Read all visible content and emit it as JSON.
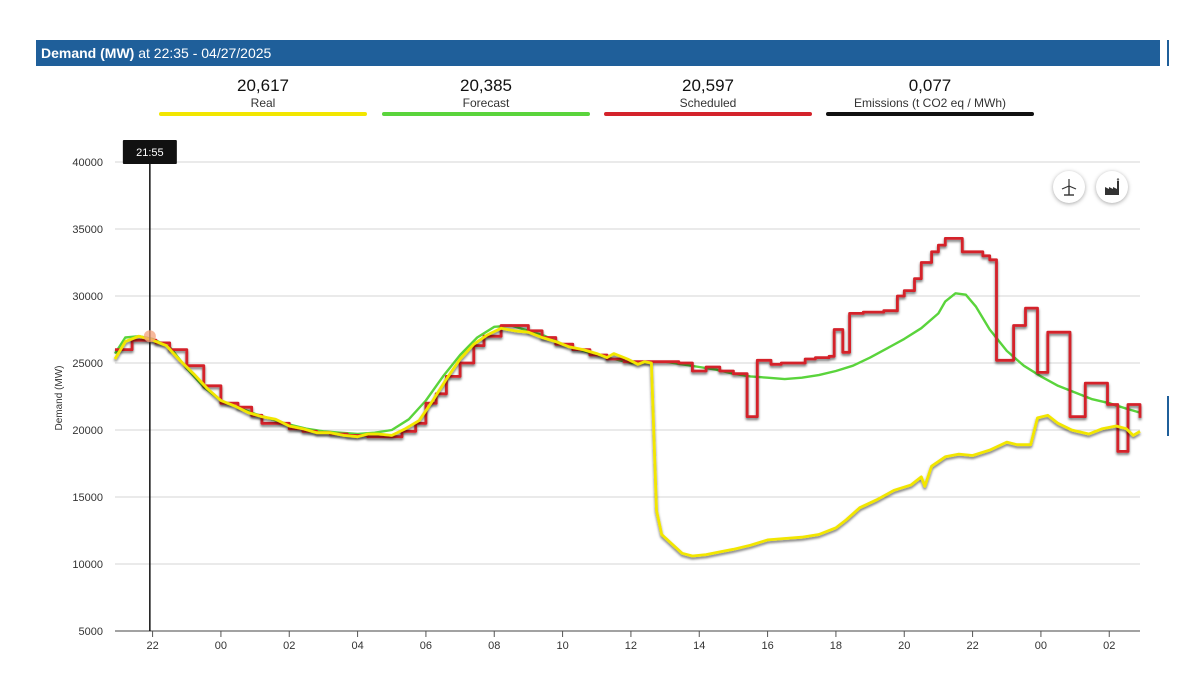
{
  "header": {
    "title_bold": "Demand (MW)",
    "title_rest": " at 22:35 - 04/27/2025"
  },
  "kpis": [
    {
      "value": "20,617",
      "label": "Real",
      "color": "#f2e600"
    },
    {
      "value": "20,385",
      "label": "Forecast",
      "color": "#5ad43c"
    },
    {
      "value": "20,597",
      "label": "Scheduled",
      "color": "#d4232b"
    },
    {
      "value": "0,077",
      "label": "Emissions (t CO2 eq / MWh)",
      "color": "#111111"
    }
  ],
  "buttons": {
    "left_icon": "wind-turbine-icon",
    "right_icon": "factory-icon"
  },
  "chart_data": {
    "type": "line",
    "title": "Demand (MW)",
    "ylabel": "Demand (MW)",
    "xlabel": "",
    "ylim": [
      5000,
      40000
    ],
    "yticks": [
      5000,
      10000,
      15000,
      20000,
      25000,
      30000,
      35000,
      40000
    ],
    "xlim": [
      20.9,
      50.9
    ],
    "xticks": [
      {
        "x": 22,
        "label": "22"
      },
      {
        "x": 24,
        "label": "00"
      },
      {
        "x": 26,
        "label": "02"
      },
      {
        "x": 28,
        "label": "04"
      },
      {
        "x": 30,
        "label": "06"
      },
      {
        "x": 32,
        "label": "08"
      },
      {
        "x": 34,
        "label": "10"
      },
      {
        "x": 36,
        "label": "12"
      },
      {
        "x": 38,
        "label": "14"
      },
      {
        "x": 40,
        "label": "16"
      },
      {
        "x": 42,
        "label": "18"
      },
      {
        "x": 44,
        "label": "20"
      },
      {
        "x": 46,
        "label": "22"
      },
      {
        "x": 48,
        "label": "00"
      },
      {
        "x": 50,
        "label": "02"
      }
    ],
    "cursor": {
      "x": 21.92,
      "label": "21:55"
    },
    "series": [
      {
        "name": "Forecast",
        "color": "#5ad43c",
        "step": false,
        "points": [
          [
            20.9,
            25700
          ],
          [
            21.2,
            26900
          ],
          [
            21.6,
            27000
          ],
          [
            22,
            26800
          ],
          [
            22.5,
            26200
          ],
          [
            23,
            24600
          ],
          [
            23.5,
            23200
          ],
          [
            24,
            22200
          ],
          [
            24.5,
            21700
          ],
          [
            25,
            21200
          ],
          [
            25.5,
            20800
          ],
          [
            26,
            20400
          ],
          [
            26.5,
            20100
          ],
          [
            27,
            19900
          ],
          [
            27.5,
            19800
          ],
          [
            28,
            19700
          ],
          [
            28.5,
            19800
          ],
          [
            29,
            20000
          ],
          [
            29.5,
            20800
          ],
          [
            30,
            22200
          ],
          [
            30.5,
            24000
          ],
          [
            31,
            25600
          ],
          [
            31.5,
            26900
          ],
          [
            32,
            27700
          ],
          [
            32.5,
            27800
          ],
          [
            33,
            27400
          ],
          [
            33.5,
            27000
          ],
          [
            34,
            26400
          ],
          [
            34.5,
            26000
          ],
          [
            35,
            25600
          ],
          [
            35.5,
            25300
          ],
          [
            36,
            25000
          ],
          [
            36.5,
            25100
          ],
          [
            37,
            25100
          ],
          [
            37.5,
            24900
          ],
          [
            38,
            24700
          ],
          [
            38.5,
            24500
          ],
          [
            39,
            24200
          ],
          [
            39.5,
            24000
          ],
          [
            40,
            23900
          ],
          [
            40.5,
            23800
          ],
          [
            41,
            23900
          ],
          [
            41.5,
            24100
          ],
          [
            42,
            24400
          ],
          [
            42.5,
            24800
          ],
          [
            43,
            25400
          ],
          [
            43.5,
            26100
          ],
          [
            44,
            26800
          ],
          [
            44.5,
            27600
          ],
          [
            45,
            28700
          ],
          [
            45.2,
            29600
          ],
          [
            45.5,
            30200
          ],
          [
            45.8,
            30100
          ],
          [
            46.1,
            29200
          ],
          [
            46.5,
            27500
          ],
          [
            47,
            25900
          ],
          [
            47.5,
            24800
          ],
          [
            48,
            24000
          ],
          [
            48.5,
            23300
          ],
          [
            49,
            22800
          ],
          [
            49.5,
            22300
          ],
          [
            50,
            22000
          ],
          [
            50.5,
            21600
          ],
          [
            50.9,
            21300
          ]
        ]
      },
      {
        "name": "Scheduled",
        "color": "#d4232b",
        "step": true,
        "points": [
          [
            20.9,
            26000
          ],
          [
            21.4,
            26700
          ],
          [
            22.1,
            26500
          ],
          [
            22.5,
            26000
          ],
          [
            23,
            24800
          ],
          [
            23.5,
            23300
          ],
          [
            24,
            22000
          ],
          [
            24.5,
            21700
          ],
          [
            24.9,
            21100
          ],
          [
            25.2,
            20500
          ],
          [
            25.6,
            20500
          ],
          [
            26,
            20100
          ],
          [
            26.4,
            19900
          ],
          [
            26.8,
            19800
          ],
          [
            27.2,
            19700
          ],
          [
            27.7,
            19600
          ],
          [
            28.3,
            19500
          ],
          [
            28.9,
            19500
          ],
          [
            29.3,
            19900
          ],
          [
            29.7,
            20500
          ],
          [
            30,
            22000
          ],
          [
            30.3,
            22700
          ],
          [
            30.6,
            24000
          ],
          [
            31,
            25000
          ],
          [
            31.4,
            26300
          ],
          [
            31.7,
            27000
          ],
          [
            32.2,
            27800
          ],
          [
            32.6,
            27800
          ],
          [
            33,
            27400
          ],
          [
            33.4,
            26900
          ],
          [
            33.8,
            26400
          ],
          [
            34.3,
            26000
          ],
          [
            34.8,
            25600
          ],
          [
            35.3,
            25300
          ],
          [
            35.8,
            25100
          ],
          [
            36.2,
            25100
          ],
          [
            36.6,
            25100
          ],
          [
            37.4,
            25000
          ],
          [
            37.8,
            24400
          ],
          [
            38.2,
            24700
          ],
          [
            38.6,
            24400
          ],
          [
            39,
            24200
          ],
          [
            39.4,
            21000
          ],
          [
            39.7,
            25200
          ],
          [
            40.1,
            24900
          ],
          [
            40.4,
            25000
          ],
          [
            40.8,
            25000
          ],
          [
            41.1,
            25300
          ],
          [
            41.4,
            25400
          ],
          [
            41.8,
            25500
          ],
          [
            41.95,
            27500
          ],
          [
            42.2,
            25800
          ],
          [
            42.4,
            28700
          ],
          [
            42.8,
            28800
          ],
          [
            43.4,
            28900
          ],
          [
            43.8,
            30000
          ],
          [
            44,
            30400
          ],
          [
            44.3,
            31300
          ],
          [
            44.5,
            32500
          ],
          [
            44.8,
            33300
          ],
          [
            45,
            33800
          ],
          [
            45.2,
            34300
          ],
          [
            45.7,
            33300
          ],
          [
            46.3,
            33000
          ],
          [
            46.5,
            32700
          ],
          [
            46.7,
            25200
          ],
          [
            47.2,
            27800
          ],
          [
            47.55,
            29100
          ],
          [
            47.9,
            24300
          ],
          [
            48.2,
            27300
          ],
          [
            48.85,
            21000
          ],
          [
            49.3,
            23500
          ],
          [
            49.95,
            21900
          ],
          [
            50.25,
            18400
          ],
          [
            50.55,
            21900
          ],
          [
            50.9,
            20900
          ]
        ]
      },
      {
        "name": "Real",
        "color": "#f2e600",
        "step": false,
        "points": [
          [
            20.9,
            25300
          ],
          [
            21.2,
            26600
          ],
          [
            21.6,
            27000
          ],
          [
            22,
            26700
          ],
          [
            22.4,
            26300
          ],
          [
            22.8,
            25200
          ],
          [
            23.2,
            24200
          ],
          [
            23.6,
            23100
          ],
          [
            24,
            22200
          ],
          [
            24.4,
            21800
          ],
          [
            24.8,
            21300
          ],
          [
            25.2,
            21000
          ],
          [
            25.6,
            20800
          ],
          [
            26,
            20300
          ],
          [
            26.4,
            20100
          ],
          [
            26.8,
            19800
          ],
          [
            27.2,
            19800
          ],
          [
            27.6,
            19600
          ],
          [
            28,
            19500
          ],
          [
            28.3,
            19700
          ],
          [
            28.6,
            19700
          ],
          [
            29,
            19600
          ],
          [
            29.4,
            20100
          ],
          [
            29.8,
            20700
          ],
          [
            30.2,
            22200
          ],
          [
            30.6,
            23800
          ],
          [
            31,
            25300
          ],
          [
            31.4,
            26400
          ],
          [
            31.8,
            27100
          ],
          [
            32.2,
            27600
          ],
          [
            32.6,
            27400
          ],
          [
            33,
            27300
          ],
          [
            33.4,
            26900
          ],
          [
            33.8,
            26600
          ],
          [
            34.2,
            26200
          ],
          [
            34.6,
            26000
          ],
          [
            35,
            25700
          ],
          [
            35.3,
            25400
          ],
          [
            35.5,
            25700
          ],
          [
            35.9,
            25300
          ],
          [
            36.2,
            24900
          ],
          [
            36.4,
            25100
          ],
          [
            36.6,
            25000
          ],
          [
            36.75,
            14000
          ],
          [
            36.9,
            12200
          ],
          [
            37.2,
            11500
          ],
          [
            37.5,
            10800
          ],
          [
            37.8,
            10600
          ],
          [
            38.2,
            10700
          ],
          [
            38.6,
            10900
          ],
          [
            39,
            11100
          ],
          [
            39.5,
            11400
          ],
          [
            40,
            11800
          ],
          [
            40.5,
            11900
          ],
          [
            41,
            12000
          ],
          [
            41.5,
            12200
          ],
          [
            42,
            12700
          ],
          [
            42.3,
            13300
          ],
          [
            42.7,
            14200
          ],
          [
            43.2,
            14800
          ],
          [
            43.7,
            15500
          ],
          [
            44.2,
            15900
          ],
          [
            44.5,
            16500
          ],
          [
            44.6,
            15800
          ],
          [
            44.8,
            17300
          ],
          [
            45.2,
            18000
          ],
          [
            45.6,
            18200
          ],
          [
            46,
            18100
          ],
          [
            46.5,
            18500
          ],
          [
            47,
            19100
          ],
          [
            47.3,
            18900
          ],
          [
            47.7,
            18900
          ],
          [
            47.9,
            20900
          ],
          [
            48.2,
            21100
          ],
          [
            48.5,
            20500
          ],
          [
            48.9,
            20000
          ],
          [
            49.4,
            19700
          ],
          [
            49.8,
            20100
          ],
          [
            50.2,
            20300
          ],
          [
            50.5,
            20100
          ],
          [
            50.7,
            19600
          ],
          [
            50.9,
            19900
          ]
        ]
      }
    ]
  }
}
